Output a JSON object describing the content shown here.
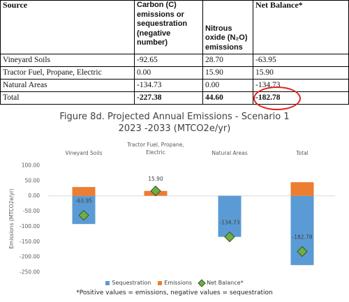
{
  "table": {
    "headers": [
      "Source",
      "Carbon (C) emissions or sequestration (negative number)",
      "Nitrous oxide (N₂O) emissions",
      "Net Balance*"
    ],
    "rows": [
      [
        "Vineyard Soils",
        "-92.65",
        "28.70",
        "-63.95"
      ],
      [
        "Tractor Fuel, Propane, Electric",
        "0.00",
        "15.90",
        "15.90"
      ],
      [
        "Natural Areas",
        "-134.73",
        "0.00",
        "-134.73"
      ]
    ],
    "total": [
      "Total",
      "-227.38",
      "44.60",
      "-182.78"
    ]
  },
  "colors": {
    "sequestration": "#5b9bd5",
    "emissions": "#ed7d31",
    "net_balance": "#70ad47",
    "highlight_circle": "#e0201b"
  },
  "chart_data": {
    "type": "bar",
    "title": "Figure 8d. Projected Annual Emissions - Scenario 1",
    "subtitle": "2023 -2033 (MTCO2e/yr)",
    "ylabel": "Emissions (MTCO2e/yr)",
    "categories": [
      "Vineyard Soils",
      "Tractor Fuel, Propane,\nElectric",
      "Natural Areas",
      "Total"
    ],
    "category_labels": [
      [
        "Vineyard Soils"
      ],
      [
        "Tractor Fuel, Propane,",
        "Electric"
      ],
      [
        "Natural Areas"
      ],
      [
        "Total"
      ]
    ],
    "yticks": [
      "100.00",
      "50.00",
      "0.00",
      "-50.00",
      "-100.00",
      "-150.00",
      "-200.00",
      "-250.00"
    ],
    "ylim": [
      -250,
      100
    ],
    "series": [
      {
        "name": "Sequestration",
        "values": [
          -92.65,
          0.0,
          -134.73,
          -227.38
        ]
      },
      {
        "name": "Emissions",
        "values": [
          28.7,
          15.9,
          0.0,
          44.6
        ]
      },
      {
        "name": "Net Balance*",
        "values": [
          -63.95,
          15.9,
          -134.73,
          -182.78
        ]
      }
    ],
    "data_labels": [
      "-63.95",
      "15.90",
      "-134.73",
      "-182.78"
    ],
    "legend_position": "bottom",
    "grid": false,
    "footnote": "*Positive values = emissions, negative values = sequestration"
  }
}
